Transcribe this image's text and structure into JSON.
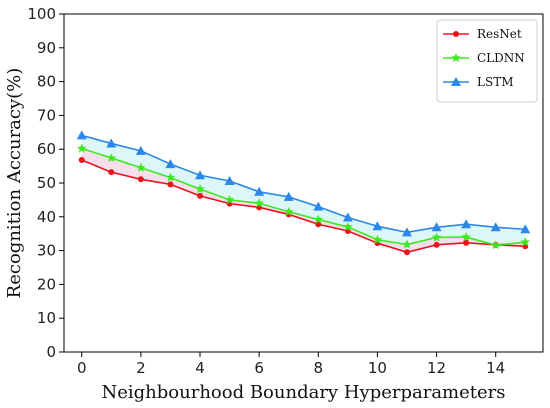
{
  "chart_data": {
    "type": "line",
    "xlabel": "Neighbourhood Boundary Hyperparameters",
    "ylabel": "Recognition Accuracy(%)",
    "xlim": [
      -0.6,
      15.6
    ],
    "ylim": [
      0,
      100
    ],
    "xticks": [
      0,
      2,
      4,
      6,
      8,
      10,
      12,
      14
    ],
    "yticks": [
      0,
      10,
      20,
      30,
      40,
      50,
      60,
      70,
      80,
      90,
      100
    ],
    "grid": false,
    "legend_position": "top-right",
    "x": [
      0,
      1,
      2,
      3,
      4,
      5,
      6,
      7,
      8,
      9,
      10,
      11,
      12,
      13,
      14,
      15
    ],
    "series": [
      {
        "name": "ResNet",
        "color": "#e8141b",
        "marker": "circle",
        "values": [
          56.8,
          53.2,
          51.1,
          49.6,
          46.2,
          43.9,
          42.8,
          40.7,
          37.8,
          35.8,
          32.2,
          29.5,
          31.7,
          32.3,
          31.7,
          31.3
        ]
      },
      {
        "name": "CLDNN",
        "color": "#3ee81e",
        "marker": "star",
        "values": [
          60.2,
          57.4,
          54.5,
          51.6,
          48.2,
          45.0,
          44.0,
          41.5,
          39.2,
          37.0,
          33.2,
          31.8,
          33.9,
          34.0,
          31.6,
          32.5
        ]
      },
      {
        "name": "LSTM",
        "color": "#2b87e8",
        "marker": "triangle",
        "values": [
          64.1,
          61.7,
          59.5,
          55.6,
          52.3,
          50.6,
          47.4,
          45.9,
          43.0,
          39.8,
          37.2,
          35.4,
          36.9,
          37.8,
          36.9,
          36.3
        ]
      }
    ],
    "fills": [
      {
        "between": [
          "ResNet",
          "CLDNN"
        ],
        "color": "#e8a0c8",
        "opacity": 0.35
      },
      {
        "between": [
          "CLDNN",
          "LSTM"
        ],
        "color": "#9fe8ef",
        "opacity": 0.35
      }
    ]
  }
}
